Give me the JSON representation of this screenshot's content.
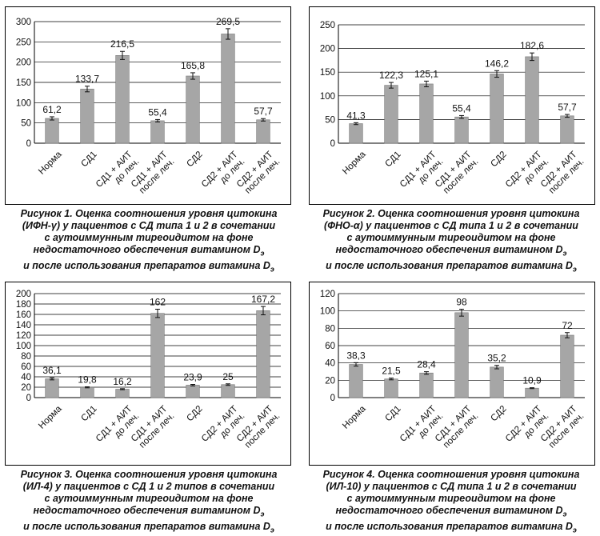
{
  "chart_data": [
    {
      "type": "bar",
      "categories": [
        [
          "Норма"
        ],
        [
          "СД1"
        ],
        [
          "СД1 + АИТ",
          "до леч."
        ],
        [
          "СД1 + АИТ",
          "после леч."
        ],
        [
          "СД2"
        ],
        [
          "СД2 + АИТ",
          "до леч."
        ],
        [
          "СД2 + АИТ",
          "после леч."
        ]
      ],
      "values": [
        61.2,
        133.7,
        216.5,
        55.4,
        165.8,
        269.5,
        57.7
      ],
      "value_labels": [
        "61,2",
        "133,7",
        "216,5",
        "55,4",
        "165,8",
        "269,5",
        "57,7"
      ],
      "errors": [
        4,
        7,
        10,
        3,
        8,
        13,
        3
      ],
      "ylim": [
        0,
        300
      ],
      "yticks": [
        0,
        50,
        100,
        150,
        200,
        250,
        300
      ],
      "grid": true,
      "bar_color": "#a6a6a6",
      "caption": {
        "lines": [
          "Рисунок 1. Оценка соотношения уровня цитокина",
          "(ИФН-γ) у пациентов с СД типа 1 и 2 в сочетании",
          "с аутоиммунным тиреоидитом на фоне",
          "недостаточного обеспечения витамином D",
          "и после использования препаратов витамина D"
        ],
        "subscript": "э"
      }
    },
    {
      "type": "bar",
      "categories": [
        [
          "Норма"
        ],
        [
          "СД1"
        ],
        [
          "СД1 + АИТ",
          "до леч."
        ],
        [
          "СД1 + АИТ",
          "после леч."
        ],
        [
          "СД2"
        ],
        [
          "СД2 + АИТ",
          "до леч."
        ],
        [
          "СД2 + АИТ",
          "после леч."
        ]
      ],
      "values": [
        41.3,
        122.3,
        125.1,
        55.4,
        146.2,
        182.6,
        57.7
      ],
      "value_labels": [
        "41,3",
        "122,3",
        "125,1",
        "55,4",
        "146,2",
        "182,6",
        "57,7"
      ],
      "errors": [
        2,
        6,
        6,
        3,
        7,
        8,
        3
      ],
      "ylim": [
        0,
        250
      ],
      "yticks": [
        0,
        50,
        100,
        150,
        200,
        250
      ],
      "grid": true,
      "bar_color": "#a6a6a6",
      "caption": {
        "lines": [
          "Рисунок 2. Оценка соотношения уровня цитокина",
          "(ФНО-α) у пациентов с СД типа 1 и 2 в сочетании",
          "с аутоиммунным тиреоидитом на фоне",
          "недостаточного обеспечения витамином D",
          "и после использования препаратов витамина D"
        ],
        "subscript": "э"
      }
    },
    {
      "type": "bar",
      "categories": [
        [
          "Норма"
        ],
        [
          "СД1"
        ],
        [
          "СД1 + АИТ",
          "до леч."
        ],
        [
          "СД1 + АИТ",
          "после леч."
        ],
        [
          "СД2"
        ],
        [
          "СД2 + АИТ",
          "до леч."
        ],
        [
          "СД2 + АИТ",
          "после леч."
        ]
      ],
      "values": [
        36.1,
        19.8,
        16.2,
        162,
        23.9,
        25,
        167.2
      ],
      "value_labels": [
        "36,1",
        "19,8",
        "16,2",
        "162",
        "23,9",
        "25",
        "167,2"
      ],
      "errors": [
        2,
        1,
        1,
        8,
        1.5,
        1.5,
        8
      ],
      "ylim": [
        0,
        200
      ],
      "yticks": [
        0,
        20,
        40,
        60,
        80,
        100,
        120,
        140,
        160,
        180,
        200
      ],
      "grid": true,
      "bar_color": "#a6a6a6",
      "caption": {
        "lines": [
          "Рисунок 3. Оценка соотношения уровня цитокина",
          "(ИЛ-4) у пациентов с СД 1 и 2 типов в сочетании",
          "с аутоиммунным тиреоидитом на фоне",
          "недостаточного обеспечения витамином D",
          "и после использования препаратов витамина D"
        ],
        "subscript": "э"
      }
    },
    {
      "type": "bar",
      "categories": [
        [
          "Норма"
        ],
        [
          "СД1"
        ],
        [
          "СД1 + АИТ",
          "до леч."
        ],
        [
          "СД1 + АИТ",
          "после леч."
        ],
        [
          "СД2"
        ],
        [
          "СД2 + АИТ",
          "до леч."
        ],
        [
          "СД2 + АИТ",
          "после леч."
        ]
      ],
      "values": [
        38.3,
        21.5,
        28.4,
        98,
        35.2,
        10.9,
        72
      ],
      "value_labels": [
        "38,3",
        "21,5",
        "28,4",
        "98",
        "35,2",
        "10,9",
        "72"
      ],
      "errors": [
        2,
        1,
        1.5,
        4,
        2,
        0.5,
        3
      ],
      "ylim": [
        0,
        120
      ],
      "yticks": [
        0,
        20,
        40,
        60,
        80,
        100,
        120
      ],
      "grid": true,
      "bar_color": "#a6a6a6",
      "caption": {
        "lines": [
          "Рисунок 4. Оценка соотношения уровня цитокина",
          "(ИЛ-10) у пациентов с СД типа 1 и 2 в сочетании",
          "с аутоиммунным тиреоидитом на фоне",
          "недостаточного обеспечения витамином D",
          "и после использования препаратов витамина D"
        ],
        "subscript": "э"
      }
    }
  ]
}
